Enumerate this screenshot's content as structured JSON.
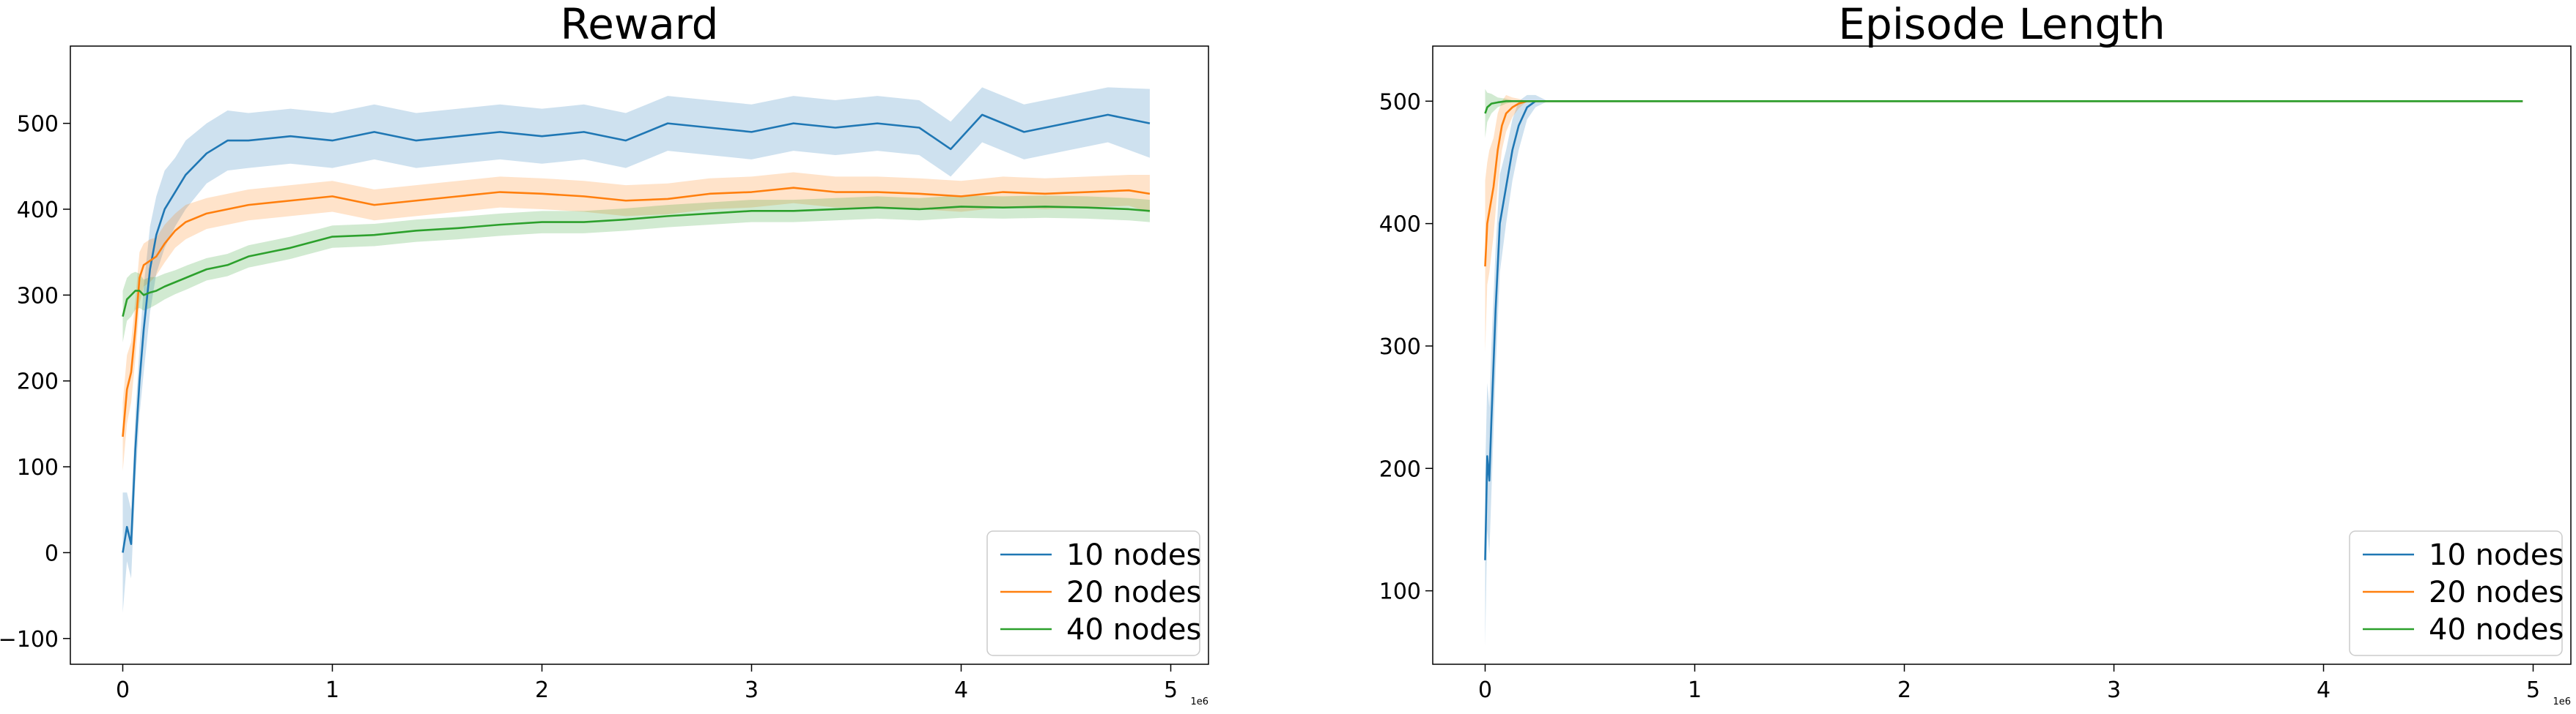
{
  "chart_data": [
    {
      "type": "line",
      "title": "Reward",
      "xlabel": "",
      "ylabel": "",
      "x_offset_label": "1e6",
      "xlim": [
        -0.25,
        5.18
      ],
      "ylim": [
        -130,
        590
      ],
      "x_ticks": [
        0,
        1,
        2,
        3,
        4,
        5
      ],
      "y_ticks": [
        -100,
        0,
        100,
        200,
        300,
        400,
        500
      ],
      "grid": false,
      "legend": "lower-right",
      "series": [
        {
          "name": "10 nodes",
          "color": "#1f77b4",
          "x": [
            0,
            0.02,
            0.04,
            0.06,
            0.08,
            0.1,
            0.13,
            0.16,
            0.2,
            0.25,
            0.3,
            0.4,
            0.5,
            0.6,
            0.8,
            1.0,
            1.2,
            1.4,
            1.6,
            1.8,
            2.0,
            2.2,
            2.4,
            2.6,
            2.8,
            3.0,
            3.2,
            3.4,
            3.6,
            3.8,
            3.95,
            4.1,
            4.3,
            4.5,
            4.7,
            4.9
          ],
          "y": [
            0,
            30,
            10,
            120,
            200,
            260,
            330,
            370,
            400,
            420,
            440,
            465,
            480,
            480,
            485,
            480,
            490,
            480,
            485,
            490,
            485,
            490,
            480,
            500,
            495,
            490,
            500,
            495,
            500,
            495,
            470,
            510,
            490,
            500,
            510,
            500
          ],
          "band": [
            70,
            40,
            40,
            40,
            40,
            50,
            50,
            45,
            45,
            40,
            40,
            35,
            35,
            32,
            32,
            32,
            32,
            32,
            32,
            32,
            32,
            32,
            32,
            32,
            32,
            32,
            32,
            32,
            32,
            32,
            32,
            32,
            32,
            32,
            32,
            40
          ]
        },
        {
          "name": "20 nodes",
          "color": "#ff7f0e",
          "x": [
            0,
            0.02,
            0.04,
            0.06,
            0.08,
            0.1,
            0.13,
            0.16,
            0.2,
            0.25,
            0.3,
            0.4,
            0.5,
            0.6,
            0.8,
            1.0,
            1.2,
            1.4,
            1.6,
            1.8,
            2.0,
            2.2,
            2.4,
            2.6,
            2.8,
            3.0,
            3.2,
            3.4,
            3.6,
            3.8,
            4.0,
            4.2,
            4.4,
            4.6,
            4.8,
            4.9
          ],
          "y": [
            135,
            190,
            210,
            260,
            320,
            335,
            340,
            345,
            360,
            375,
            385,
            395,
            400,
            405,
            410,
            415,
            405,
            410,
            415,
            420,
            418,
            415,
            410,
            412,
            418,
            420,
            425,
            420,
            420,
            418,
            415,
            420,
            418,
            420,
            422,
            418
          ],
          "band": [
            40,
            40,
            35,
            35,
            30,
            25,
            25,
            22,
            22,
            20,
            20,
            18,
            18,
            18,
            18,
            18,
            18,
            18,
            18,
            18,
            18,
            18,
            18,
            18,
            18,
            18,
            18,
            18,
            18,
            18,
            18,
            18,
            18,
            18,
            18,
            22
          ]
        },
        {
          "name": "40 nodes",
          "color": "#2ca02c",
          "x": [
            0,
            0.02,
            0.04,
            0.06,
            0.08,
            0.1,
            0.13,
            0.16,
            0.2,
            0.25,
            0.3,
            0.4,
            0.5,
            0.6,
            0.8,
            1.0,
            1.2,
            1.4,
            1.6,
            1.8,
            2.0,
            2.2,
            2.4,
            2.6,
            2.8,
            3.0,
            3.2,
            3.4,
            3.6,
            3.8,
            4.0,
            4.2,
            4.4,
            4.6,
            4.8,
            4.9
          ],
          "y": [
            275,
            295,
            300,
            305,
            305,
            300,
            303,
            305,
            310,
            315,
            320,
            330,
            335,
            345,
            355,
            368,
            370,
            375,
            378,
            382,
            385,
            385,
            388,
            392,
            395,
            398,
            398,
            400,
            402,
            400,
            403,
            402,
            403,
            402,
            400,
            398
          ],
          "band": [
            30,
            25,
            25,
            22,
            20,
            18,
            18,
            16,
            15,
            14,
            14,
            13,
            13,
            13,
            13,
            13,
            13,
            13,
            13,
            13,
            13,
            13,
            13,
            13,
            13,
            13,
            13,
            13,
            13,
            13,
            13,
            13,
            13,
            13,
            13,
            13
          ]
        }
      ]
    },
    {
      "type": "line",
      "title": "Episode Length",
      "xlabel": "",
      "ylabel": "",
      "x_offset_label": "1e6",
      "xlim": [
        -0.25,
        5.18
      ],
      "ylim": [
        40,
        545
      ],
      "x_ticks": [
        0,
        1,
        2,
        3,
        4,
        5
      ],
      "y_ticks": [
        100,
        200,
        300,
        400,
        500
      ],
      "grid": false,
      "legend": "lower-right",
      "series": [
        {
          "name": "10 nodes",
          "color": "#1f77b4",
          "x": [
            0,
            0.01,
            0.02,
            0.03,
            0.05,
            0.07,
            0.1,
            0.13,
            0.16,
            0.2,
            0.24,
            0.3,
            1.0,
            2.0,
            3.0,
            4.0,
            4.95
          ],
          "y": [
            125,
            210,
            190,
            240,
            330,
            400,
            430,
            460,
            480,
            495,
            500,
            500,
            500,
            500,
            500,
            500,
            500
          ],
          "band": [
            70,
            60,
            60,
            60,
            50,
            40,
            30,
            25,
            20,
            10,
            5,
            0,
            0,
            0,
            0,
            0,
            0
          ]
        },
        {
          "name": "20 nodes",
          "color": "#ff7f0e",
          "x": [
            0,
            0.01,
            0.02,
            0.04,
            0.06,
            0.08,
            0.1,
            0.13,
            0.16,
            0.2,
            1.0,
            2.0,
            3.0,
            4.0,
            4.95
          ],
          "y": [
            365,
            400,
            410,
            430,
            460,
            480,
            490,
            495,
            498,
            500,
            500,
            500,
            500,
            500,
            500
          ],
          "band": [
            70,
            50,
            50,
            40,
            30,
            20,
            15,
            8,
            4,
            0,
            0,
            0,
            0,
            0,
            0
          ]
        },
        {
          "name": "40 nodes",
          "color": "#2ca02c",
          "x": [
            0,
            0.01,
            0.03,
            0.06,
            0.1,
            0.15,
            0.2,
            1.0,
            2.0,
            3.0,
            4.0,
            4.95
          ],
          "y": [
            490,
            495,
            498,
            499,
            500,
            500,
            500,
            500,
            500,
            500,
            500,
            500
          ],
          "band": [
            20,
            12,
            8,
            4,
            2,
            0,
            0,
            0,
            0,
            0,
            0,
            0
          ]
        }
      ]
    }
  ]
}
